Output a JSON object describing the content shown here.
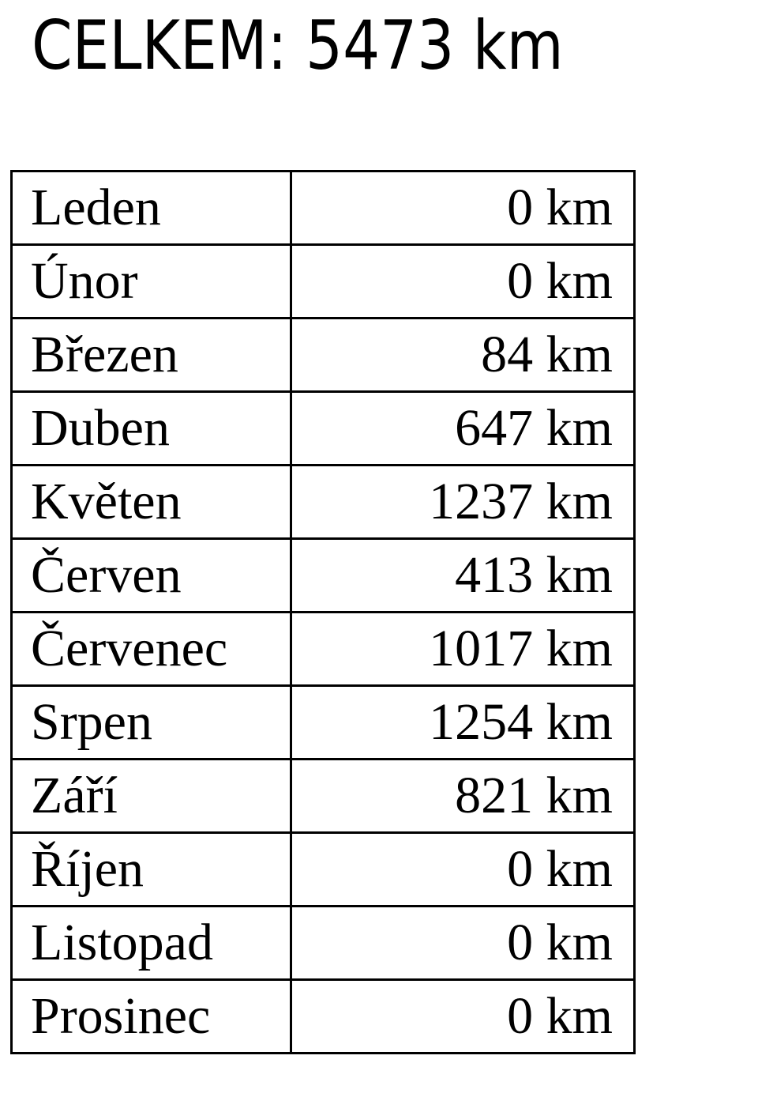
{
  "heading": "CELKEM: 5473 km",
  "rows": [
    {
      "month": "Leden",
      "km": "0 km"
    },
    {
      "month": "Únor",
      "km": "0 km"
    },
    {
      "month": "Březen",
      "km": "84 km"
    },
    {
      "month": "Duben",
      "km": "647 km"
    },
    {
      "month": "Květen",
      "km": "1237 km"
    },
    {
      "month": "Červen",
      "km": "413 km"
    },
    {
      "month": "Červenec",
      "km": "1017 km"
    },
    {
      "month": "Srpen",
      "km": "1254 km"
    },
    {
      "month": "Září",
      "km": "821 km"
    },
    {
      "month": "Říjen",
      "km": "0 km"
    },
    {
      "month": "Listopad",
      "km": "0 km"
    },
    {
      "month": "Prosinec",
      "km": "0 km"
    }
  ]
}
